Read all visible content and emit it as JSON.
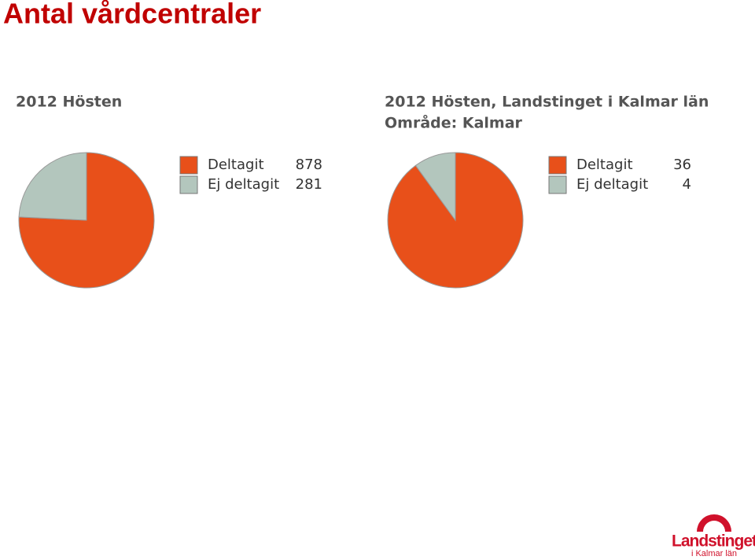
{
  "title": "Antal vårdcentraler",
  "chart_data": [
    {
      "type": "pie",
      "title": "2012 Hösten",
      "categories": [
        "Deltagit",
        "Ej deltagit"
      ],
      "values": [
        878,
        281
      ],
      "colors": [
        "#e8501a",
        "#b3c6bd"
      ]
    },
    {
      "type": "pie",
      "title": "2012 Hösten, Landstinget i Kalmar län",
      "subtitle": "Område: Kalmar",
      "categories": [
        "Deltagit",
        "Ej deltagit"
      ],
      "values": [
        36,
        4
      ],
      "colors": [
        "#e8501a",
        "#b3c6bd"
      ]
    }
  ],
  "logo": {
    "name": "Landstinget",
    "sub": "i Kalmar län"
  }
}
